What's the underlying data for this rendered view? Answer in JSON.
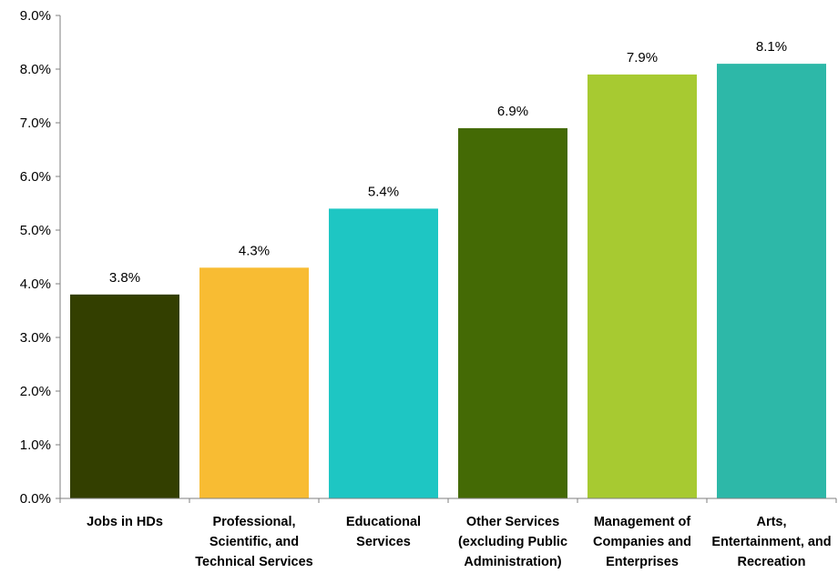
{
  "chart_data": {
    "type": "bar",
    "title": "",
    "xlabel": "",
    "ylabel": "",
    "ylim": [
      0,
      9
    ],
    "y_ticks": [
      "0.0%",
      "1.0%",
      "2.0%",
      "3.0%",
      "4.0%",
      "5.0%",
      "6.0%",
      "7.0%",
      "8.0%",
      "9.0%"
    ],
    "grid": false,
    "legend": "none",
    "categories": [
      [
        "Jobs in HDs"
      ],
      [
        "Professional,",
        "Scientific, and",
        "Technical Services"
      ],
      [
        "Educational",
        "Services"
      ],
      [
        "Other Services",
        "(excluding Public",
        "Administration)"
      ],
      [
        "Management of",
        "Companies and",
        "Enterprises"
      ],
      [
        "Arts,",
        "Entertainment, and",
        "Recreation"
      ]
    ],
    "values": [
      3.8,
      4.3,
      5.4,
      6.9,
      7.9,
      8.1
    ],
    "data_labels": [
      "3.8%",
      "4.3%",
      "5.4%",
      "6.9%",
      "7.9%",
      "8.1%"
    ],
    "colors": [
      "#333f00",
      "#f8bc33",
      "#1ec6c3",
      "#446a05",
      "#a7ca31",
      "#2db8a8"
    ]
  }
}
